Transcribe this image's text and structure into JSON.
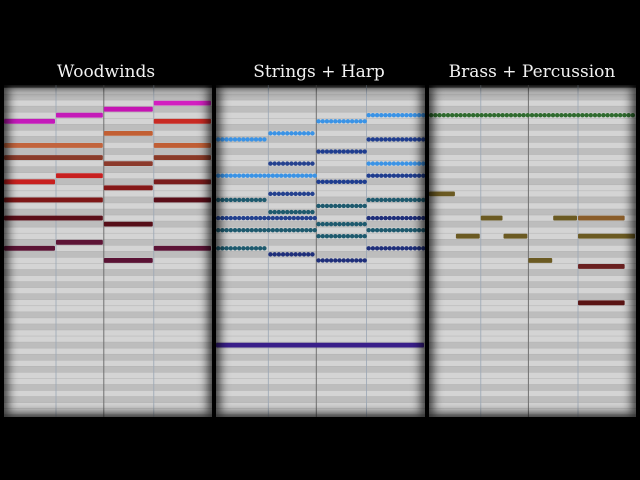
{
  "panels": [
    {
      "title": "Woodwinds",
      "notes": [
        {
          "row": 2,
          "start": 0.72,
          "end": 1.0,
          "color": "#d21fc0"
        },
        {
          "row": 3,
          "start": 0.48,
          "end": 0.72,
          "color": "#c514b3"
        },
        {
          "row": 4,
          "start": 0.25,
          "end": 0.48,
          "color": "#c41bb8"
        },
        {
          "row": 5,
          "start": 0.0,
          "end": 0.25,
          "color": "#c419ba"
        },
        {
          "row": 5,
          "start": 0.72,
          "end": 1.0,
          "color": "#c82a23"
        },
        {
          "row": 7,
          "start": 0.48,
          "end": 0.72,
          "color": "#c25f33"
        },
        {
          "row": 9,
          "start": 0.0,
          "end": 0.48,
          "color": "#c2643d"
        },
        {
          "row": 9,
          "start": 0.72,
          "end": 1.0,
          "color": "#c05e35"
        },
        {
          "row": 11,
          "start": 0.0,
          "end": 0.48,
          "color": "#8a3b2a"
        },
        {
          "row": 11,
          "start": 0.72,
          "end": 1.0,
          "color": "#8a3a28"
        },
        {
          "row": 12,
          "start": 0.48,
          "end": 0.72,
          "color": "#8c3a2c"
        },
        {
          "row": 14,
          "start": 0.25,
          "end": 0.48,
          "color": "#c81f1f"
        },
        {
          "row": 15,
          "start": 0.0,
          "end": 0.25,
          "color": "#c8201f"
        },
        {
          "row": 15,
          "start": 0.72,
          "end": 1.0,
          "color": "#7a1d1d"
        },
        {
          "row": 16,
          "start": 0.48,
          "end": 0.72,
          "color": "#851818"
        },
        {
          "row": 18,
          "start": 0.0,
          "end": 0.48,
          "color": "#7e1616"
        },
        {
          "row": 18,
          "start": 0.72,
          "end": 1.0,
          "color": "#5a0d18"
        },
        {
          "row": 21,
          "start": 0.0,
          "end": 0.48,
          "color": "#5b0f19"
        },
        {
          "row": 22,
          "start": 0.48,
          "end": 0.72,
          "color": "#560e18"
        },
        {
          "row": 25,
          "start": 0.25,
          "end": 0.48,
          "color": "#5e1536"
        },
        {
          "row": 26,
          "start": 0.0,
          "end": 0.25,
          "color": "#5b1334"
        },
        {
          "row": 26,
          "start": 0.72,
          "end": 1.0,
          "color": "#5c1336"
        },
        {
          "row": 28,
          "start": 0.48,
          "end": 0.72,
          "color": "#5a1234"
        }
      ]
    },
    {
      "title": "Strings + Harp",
      "notes": [
        {
          "row": 4,
          "start": 0.72,
          "end": 1.0,
          "color": "#3a93e6",
          "dotted": true
        },
        {
          "row": 5,
          "start": 0.48,
          "end": 0.72,
          "color": "#3a93e6",
          "dotted": true
        },
        {
          "row": 7,
          "start": 0.25,
          "end": 0.48,
          "color": "#3a93e6",
          "dotted": true
        },
        {
          "row": 8,
          "start": 0.0,
          "end": 0.25,
          "color": "#3a93e6",
          "dotted": true
        },
        {
          "row": 8,
          "start": 0.72,
          "end": 1.0,
          "color": "#1f3d8f",
          "dotted": true
        },
        {
          "row": 10,
          "start": 0.48,
          "end": 0.72,
          "color": "#1f3d8f",
          "dotted": true
        },
        {
          "row": 12,
          "start": 0.25,
          "end": 0.48,
          "color": "#24418f",
          "dotted": true
        },
        {
          "row": 12,
          "start": 0.72,
          "end": 1.0,
          "color": "#3a93e6",
          "dotted": true
        },
        {
          "row": 14,
          "start": 0.0,
          "end": 0.48,
          "color": "#3a93e6",
          "dotted": true
        },
        {
          "row": 14,
          "start": 0.72,
          "end": 1.0,
          "color": "#1f3d8f",
          "dotted": true
        },
        {
          "row": 15,
          "start": 0.48,
          "end": 0.72,
          "color": "#1f3d8f",
          "dotted": true
        },
        {
          "row": 17,
          "start": 0.25,
          "end": 0.48,
          "color": "#24418f",
          "dotted": true
        },
        {
          "row": 18,
          "start": 0.0,
          "end": 0.25,
          "color": "#1e5a6e",
          "dotted": true
        },
        {
          "row": 18,
          "start": 0.72,
          "end": 1.0,
          "color": "#1e5a6e",
          "dotted": true
        },
        {
          "row": 19,
          "start": 0.48,
          "end": 0.72,
          "color": "#1e5a6e",
          "dotted": true
        },
        {
          "row": 20,
          "start": 0.25,
          "end": 0.48,
          "color": "#1e5a6e",
          "dotted": true
        },
        {
          "row": 21,
          "start": 0.0,
          "end": 0.48,
          "color": "#23418f",
          "dotted": true
        },
        {
          "row": 21,
          "start": 0.72,
          "end": 1.0,
          "color": "#1f2f7a",
          "dotted": true
        },
        {
          "row": 22,
          "start": 0.48,
          "end": 0.72,
          "color": "#1e5a6e",
          "dotted": true
        },
        {
          "row": 23,
          "start": 0.0,
          "end": 0.48,
          "color": "#1e5a6e",
          "dotted": true
        },
        {
          "row": 23,
          "start": 0.72,
          "end": 1.0,
          "color": "#1e5a6e",
          "dotted": true
        },
        {
          "row": 24,
          "start": 0.48,
          "end": 0.72,
          "color": "#1e5a6e",
          "dotted": true
        },
        {
          "row": 26,
          "start": 0.0,
          "end": 0.25,
          "color": "#1e5a6e",
          "dotted": true
        },
        {
          "row": 26,
          "start": 0.72,
          "end": 1.0,
          "color": "#1f2f7a",
          "dotted": true
        },
        {
          "row": 27,
          "start": 0.25,
          "end": 0.48,
          "color": "#1f2f7a",
          "dotted": true
        },
        {
          "row": 28,
          "start": 0.48,
          "end": 0.72,
          "color": "#1f2f7a",
          "dotted": true
        },
        {
          "row": 42,
          "start": 0.0,
          "end": 1.0,
          "color": "#3a1f8a"
        }
      ]
    },
    {
      "title": "Brass + Percussion",
      "notes": [
        {
          "row": 4,
          "start": 0.0,
          "end": 1.0,
          "color": "#2f6b2e",
          "dotted": true
        },
        {
          "row": 17,
          "start": 0.0,
          "end": 0.13,
          "color": "#6b5a22"
        },
        {
          "row": 21,
          "start": 0.25,
          "end": 0.36,
          "color": "#6b5a22"
        },
        {
          "row": 21,
          "start": 0.6,
          "end": 0.72,
          "color": "#6b5a22"
        },
        {
          "row": 21,
          "start": 0.72,
          "end": 0.95,
          "color": "#8a5d2a"
        },
        {
          "row": 24,
          "start": 0.13,
          "end": 0.25,
          "color": "#6b5a22"
        },
        {
          "row": 24,
          "start": 0.36,
          "end": 0.48,
          "color": "#6b5a22"
        },
        {
          "row": 24,
          "start": 0.72,
          "end": 1.0,
          "color": "#6b5a22"
        },
        {
          "row": 28,
          "start": 0.48,
          "end": 0.6,
          "color": "#6b5a22"
        },
        {
          "row": 29,
          "start": 0.72,
          "end": 0.95,
          "color": "#6a2020"
        },
        {
          "row": 35,
          "start": 0.72,
          "end": 0.95,
          "color": "#5a1414"
        }
      ]
    }
  ]
}
